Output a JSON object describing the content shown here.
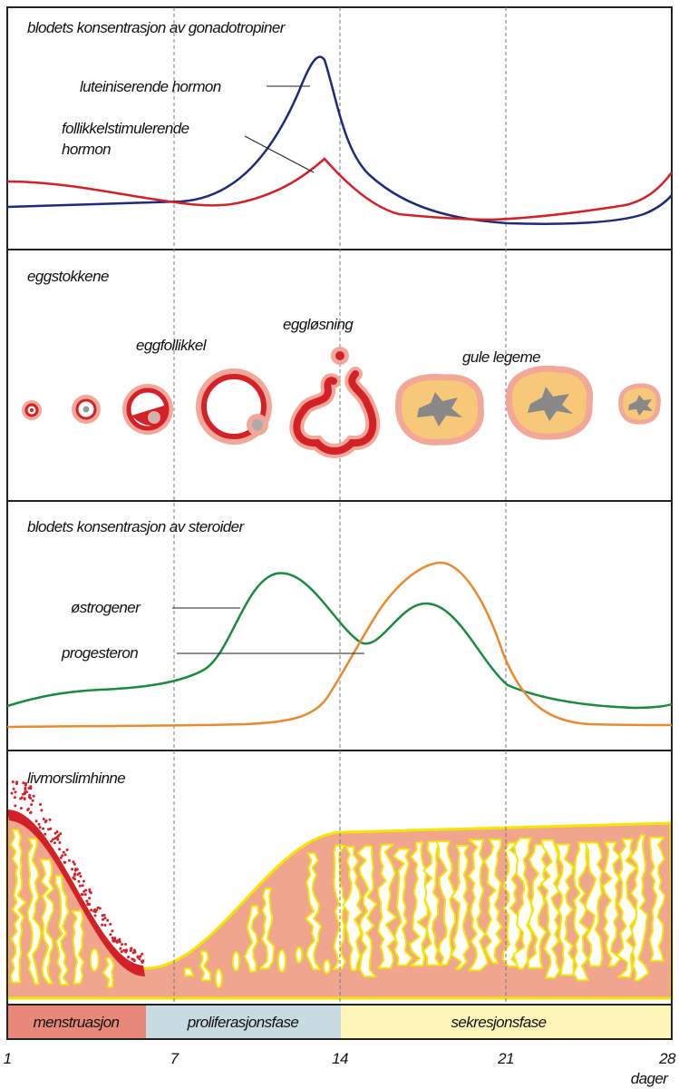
{
  "panels": [
    {
      "title": "blodets konsentrasjon av gonadotropiner",
      "labels": [
        "luteiniserende hormon",
        "follikkelstimulerende",
        "hormon"
      ]
    },
    {
      "title": "eggstokkene",
      "labels": [
        "eggfollikkel",
        "eggløsning",
        "gule legeme"
      ]
    },
    {
      "title": "blodets konsentrasjon av steroider",
      "labels": [
        "østrogener",
        "progesteron"
      ]
    },
    {
      "title": "livmorslimhinne"
    }
  ],
  "phases": [
    "menstruasjon",
    "proliferasjonsfase",
    "sekresjonsfase"
  ],
  "days": [
    1,
    7,
    14,
    21,
    28
  ],
  "unit": "dager"
}
